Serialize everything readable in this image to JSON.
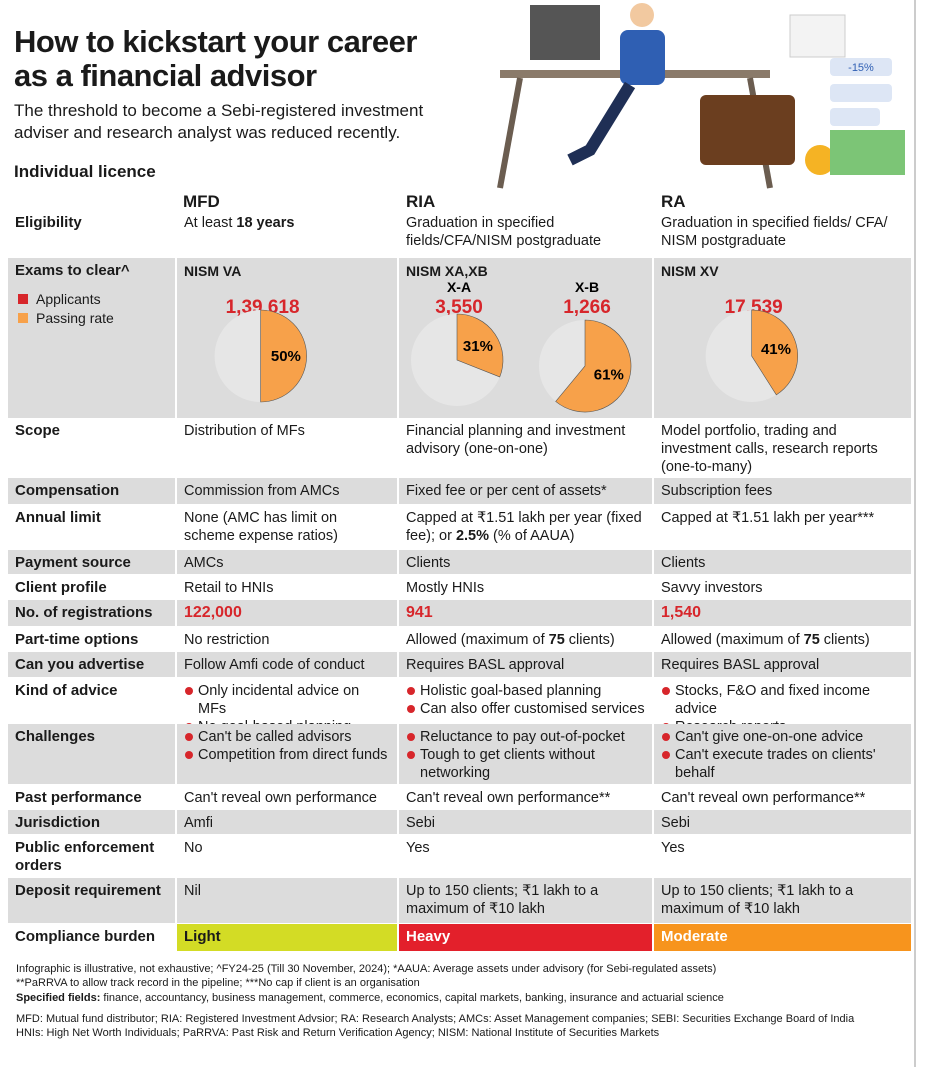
{
  "header": {
    "title_lines": [
      "How to kickstart your career",
      "as a financial advisor"
    ],
    "subtitle": "The threshold to become a Sebi-registered investment adviser and research analyst was reduced recently.",
    "section": "Individual licence",
    "badge": "-15%"
  },
  "table": {
    "columns": [
      "MFD",
      "RIA",
      "RA"
    ],
    "legend": [
      {
        "name": "Applicants",
        "color": "#d7262b"
      },
      {
        "name": "Passing rate",
        "color": "#f7a14a"
      }
    ],
    "highlight_color": "#d7262b",
    "rows": [
      {
        "label": "Eligibility",
        "cells": [
          [
            "At least ",
            {
              "b": "18 years"
            }
          ],
          "Graduation in specified fields/CFA/NISM postgraduate",
          "Graduation in specified fields/ CFA/ NISM postgraduate"
        ]
      },
      {
        "label": "Exams to clear^",
        "cells": [
          {
            "exam": "NISM VA",
            "pies": [
              {
                "applicants": "1,39,618",
                "rate": {
                  "value": 50,
                  "label": "50%"
                }
              }
            ]
          },
          {
            "exam": "NISM XA,XB",
            "pies": [
              {
                "name": "X-A",
                "applicants": "3,550",
                "rate": {
                  "value": 31,
                  "label": "31%"
                }
              },
              {
                "name": "X-B",
                "applicants": "1,266",
                "rate": {
                  "value": 61,
                  "label": "61%"
                }
              }
            ]
          },
          {
            "exam": "NISM XV",
            "pies": [
              {
                "applicants": "17,539",
                "rate": {
                  "value": 41,
                  "label": "41%"
                }
              }
            ]
          }
        ]
      },
      {
        "label": "Scope",
        "cells": [
          "Distribution of MFs",
          "Financial planning and investment advisory (one-on-one)",
          "Model portfolio, trading and investment calls, research reports (one-to-many)"
        ]
      },
      {
        "label": "Compensation",
        "cells": [
          "Commission from AMCs",
          "Fixed fee or per cent of assets*",
          "Subscription fees"
        ]
      },
      {
        "label": "Annual limit",
        "cells": [
          "None (AMC has limit on scheme expense ratios)",
          [
            "Capped at ₹1.51 lakh per year (fixed fee); or ",
            {
              "b": "2.5%"
            },
            " (% of AAUA)"
          ],
          "Capped at ₹1.51 lakh per year***"
        ]
      },
      {
        "label": "Payment source",
        "cells": [
          "AMCs",
          "Clients",
          "Clients"
        ]
      },
      {
        "label": "Client profile",
        "cells": [
          "Retail to HNIs",
          "Mostly HNIs",
          "Savvy investors"
        ]
      },
      {
        "label": "No. of registrations",
        "highlight": true,
        "cells": [
          "122,000",
          "941",
          "1,540"
        ]
      },
      {
        "label": "Part-time options",
        "cells": [
          "No restriction",
          [
            "Allowed (maximum of ",
            {
              "b": "75"
            },
            " clients)"
          ],
          [
            "Allowed (maximum of ",
            {
              "b": "75"
            },
            " clients)"
          ]
        ]
      },
      {
        "label": "Can you advertise",
        "cells": [
          "Follow Amfi code of conduct",
          "Requires BASL approval",
          "Requires BASL approval"
        ]
      },
      {
        "label": "Kind of advice",
        "cells": [
          {
            "bullets": [
              "Only incidental advice on MFs",
              "No goal-based planning"
            ]
          },
          {
            "bullets": [
              "Holistic goal-based planning",
              "Can also offer customised services"
            ]
          },
          {
            "bullets": [
              "Stocks, F&O and fixed income advice",
              "Research reports"
            ]
          }
        ]
      },
      {
        "label": "Challenges",
        "cells": [
          {
            "bullets": [
              "Can't be called advisors",
              "Competition from direct funds"
            ]
          },
          {
            "bullets": [
              "Reluctance to pay out-of-pocket",
              "Tough to get clients without networking"
            ]
          },
          {
            "bullets": [
              "Can't give one-on-one advice",
              "Can't execute trades on clients' behalf"
            ]
          }
        ]
      },
      {
        "label": "Past performance",
        "cells": [
          "Can't reveal own performance",
          "Can't reveal own performance**",
          "Can't reveal own performance**"
        ]
      },
      {
        "label": "Jurisdiction",
        "cells": [
          "Amfi",
          "Sebi",
          "Sebi"
        ]
      },
      {
        "label": "Public enforcement orders",
        "cells": [
          "No",
          "Yes",
          "Yes"
        ]
      },
      {
        "label": "Deposit requirement",
        "cells": [
          "Nil",
          "Up to 150 clients; ₹1 lakh to a maximum of ₹10 lakh",
          "Up to 150 clients; ₹1 lakh to a maximum of ₹10 lakh"
        ]
      },
      {
        "label": "Compliance burden",
        "cells": [
          {
            "text": "Light",
            "color": "#d3dc25"
          },
          {
            "text": "Heavy",
            "color": "#e3202b"
          },
          {
            "text": "Moderate",
            "color": "#f7941d"
          }
        ]
      }
    ]
  },
  "notes": [
    "Infographic is illustrative, not exhaustive; ^FY24-25 (Till 30 November, 2024); *AAUA: Average assets under advisory (for Sebi-regulated assets)",
    "**PaRRVA to allow track record in the pipeline; ***No cap if client is an organisation",
    [
      {
        "b": "Specified fields:"
      },
      " finance, accountancy, business management, commerce, economics, capital markets, banking, insurance and actuarial science"
    ],
    "MFD: Mutual fund distributor; RIA: Registered Investment Advsior; RA: Research Analysts; AMCs: Asset Management companies; SEBI: Securities Exchange Board of India",
    "HNIs: High Net Worth Individuals; PaRRVA: Past Risk and Return Verification Agency; NISM: National Institute of Securities Markets"
  ]
}
